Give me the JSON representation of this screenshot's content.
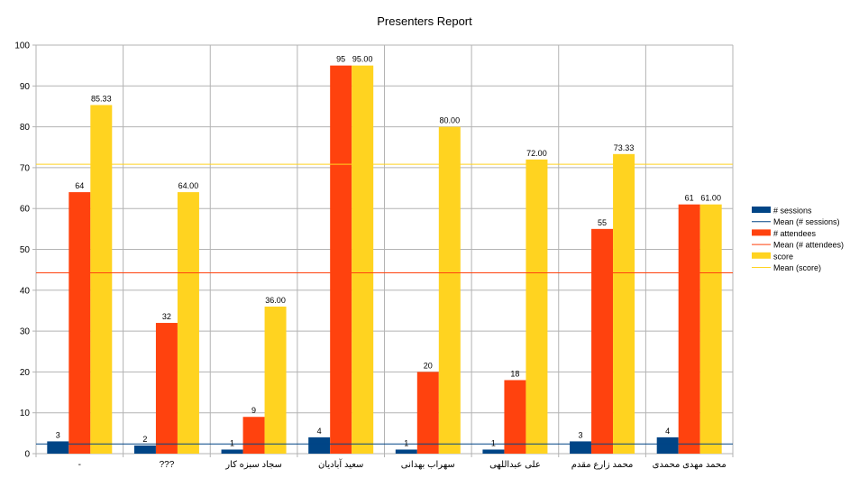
{
  "chart_data": {
    "type": "bar",
    "title": "Presenters Report",
    "xlabel": "",
    "ylabel": "",
    "ylim": [
      0,
      100
    ],
    "yticks": [
      0,
      10,
      20,
      30,
      40,
      50,
      60,
      70,
      80,
      90,
      100
    ],
    "grid": true,
    "legend_position": "right",
    "categories": [
      "-",
      "???",
      "سجاد سبزه کار",
      "سعید آبادیان",
      "سهراب بهدانی",
      "علی عبداللهی",
      "محمد زارع مقدم",
      "محمد مهدی محمدی"
    ],
    "series": [
      {
        "name": "# sessions",
        "color": "#004586",
        "values": [
          3,
          2,
          1,
          4,
          1,
          1,
          3,
          4
        ],
        "labels": [
          "3",
          "2",
          "1",
          "4",
          "1",
          "1",
          "3",
          "4"
        ]
      },
      {
        "name": "# attendees",
        "color": "#ff420e",
        "values": [
          64,
          32,
          9,
          95,
          20,
          18,
          55,
          61
        ],
        "labels": [
          "64",
          "32",
          "9",
          "95",
          "20",
          "18",
          "55",
          "61"
        ]
      },
      {
        "name": "score",
        "color": "#ffd320",
        "values": [
          85.33,
          64.0,
          36.0,
          95.0,
          80.0,
          72.0,
          73.33,
          61.0
        ],
        "labels": [
          "85.33",
          "64.00",
          "36.00",
          "95.00",
          "80.00",
          "72.00",
          "73.33",
          "61.00"
        ]
      }
    ],
    "mean_lines": [
      {
        "name": "Mean (# sessions)",
        "color": "#004586",
        "value": 2.375
      },
      {
        "name": "Mean (# attendees)",
        "color": "#ff420e",
        "value": 44.25
      },
      {
        "name": "Mean (score)",
        "color": "#ffd320",
        "value": 70.83
      }
    ],
    "legend": [
      "# sessions",
      "Mean (# sessions)",
      "# attendees",
      "Mean (# attendees)",
      "score",
      "Mean (score)"
    ]
  }
}
